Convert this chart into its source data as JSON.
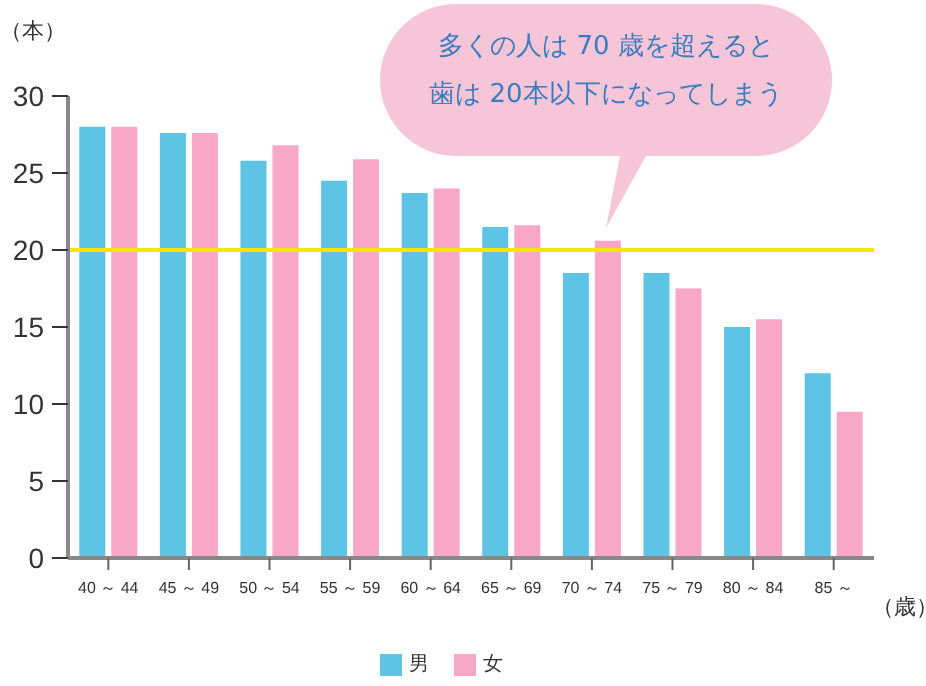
{
  "chart_data": {
    "type": "bar",
    "ylabel": "（本）",
    "xlabel": "（歳）",
    "categories": [
      "40 ～ 44",
      "45 ～ 49",
      "50 ～ 54",
      "55 ～ 59",
      "60 ～ 64",
      "65 ～ 69",
      "70 ～ 74",
      "75 ～ 79",
      "80 ～ 84",
      "85 ～"
    ],
    "series": [
      {
        "name": "男",
        "color": "#5ec4e6",
        "values": [
          28,
          27.6,
          25.8,
          24.5,
          23.7,
          21.5,
          18.5,
          18.5,
          15,
          12
        ]
      },
      {
        "name": "女",
        "color": "#f8a8c6",
        "values": [
          28,
          27.6,
          26.8,
          25.9,
          24,
          21.6,
          20.6,
          17.5,
          15.5,
          9.5
        ]
      }
    ],
    "ylim": [
      0,
      30
    ],
    "yticks": [
      0,
      5,
      10,
      15,
      20,
      25,
      30
    ],
    "ref_lines": [
      {
        "axis": "y",
        "value": 20,
        "color": "#f5e800"
      }
    ],
    "annotations": [
      "多くの人は 70 歳を超えると",
      "歯は 20本以下になってしまう"
    ],
    "legend": "bottom"
  }
}
